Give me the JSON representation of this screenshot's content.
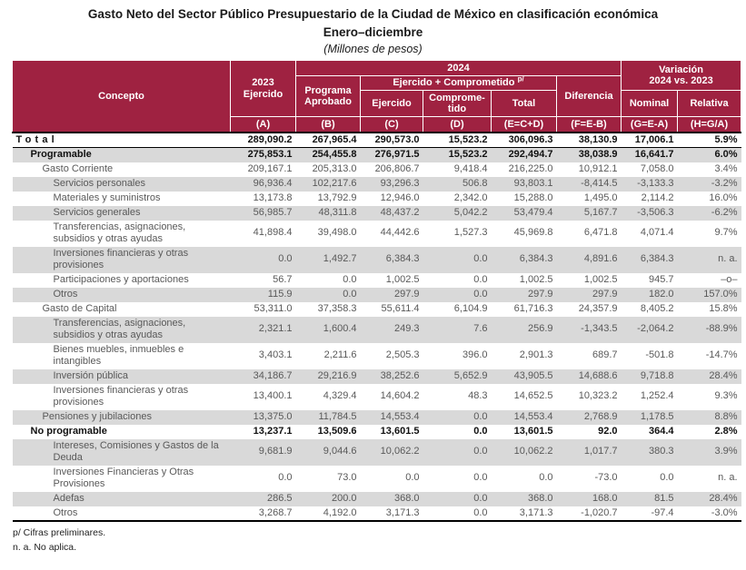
{
  "title": {
    "line1": "Gasto Neto del Sector Público Presupuestario de la Ciudad de México en clasificación económica",
    "line2": "Enero–diciembre",
    "line3": "(Millones de pesos)"
  },
  "colors": {
    "header_bg": "#9F2241",
    "alt_row_bg": "#D9D9D9",
    "body_text": "#595959",
    "bold_text": "#111111"
  },
  "table": {
    "header": {
      "concepto": "Concepto",
      "col2023_line1": "2023",
      "col2023_line2": "Ejercido",
      "group_2024": "2024",
      "variacion_line1": "Variación",
      "variacion_line2": "2024 vs. 2023",
      "programa_aprobado": "Programa Aprobado",
      "ejercido_comprometido": "Ejercido + Comprometido",
      "ejercido_comprometido_sup": "p/",
      "diferencia": "Diferencia",
      "ejercido": "Ejercido",
      "comprometido": "Comprome-tido",
      "total": "Total",
      "nominal": "Nominal",
      "relativa": "Relativa",
      "letter_a": "(A)",
      "letter_b": "(B)",
      "letter_c": "(C)",
      "letter_d": "(D)",
      "letter_e": "(E=C+D)",
      "letter_f": "(F=E-B)",
      "letter_g": "(G=E-A)",
      "letter_h": "(H=G/A)"
    },
    "rows": [
      {
        "concepto": "Total",
        "level": 0,
        "bold": true,
        "values": [
          "289,090.2",
          "267,965.4",
          "290,573.0",
          "15,523.2",
          "306,096.3",
          "38,130.9",
          "17,006.1",
          "5.9%"
        ]
      },
      {
        "concepto": "Programable",
        "level": 1,
        "bold": true,
        "values": [
          "275,853.1",
          "254,455.8",
          "276,971.5",
          "15,523.2",
          "292,494.7",
          "38,038.9",
          "16,641.7",
          "6.0%"
        ]
      },
      {
        "concepto": "Gasto Corriente",
        "level": 2,
        "bold": false,
        "values": [
          "209,167.1",
          "205,313.0",
          "206,806.7",
          "9,418.4",
          "216,225.0",
          "10,912.1",
          "7,058.0",
          "3.4%"
        ]
      },
      {
        "concepto": "Servicios personales",
        "level": 3,
        "bold": false,
        "values": [
          "96,936.4",
          "102,217.6",
          "93,296.3",
          "506.8",
          "93,803.1",
          "-8,414.5",
          "-3,133.3",
          "-3.2%"
        ]
      },
      {
        "concepto": "Materiales y suministros",
        "level": 3,
        "bold": false,
        "values": [
          "13,173.8",
          "13,792.9",
          "12,946.0",
          "2,342.0",
          "15,288.0",
          "1,495.0",
          "2,114.2",
          "16.0%"
        ]
      },
      {
        "concepto": "Servicios generales",
        "level": 3,
        "bold": false,
        "values": [
          "56,985.7",
          "48,311.8",
          "48,437.2",
          "5,042.2",
          "53,479.4",
          "5,167.7",
          "-3,506.3",
          "-6.2%"
        ]
      },
      {
        "concepto": "Transferencias, asignaciones, subsidios y otras ayudas",
        "level": 3,
        "bold": false,
        "values": [
          "41,898.4",
          "39,498.0",
          "44,442.6",
          "1,527.3",
          "45,969.8",
          "6,471.8",
          "4,071.4",
          "9.7%"
        ]
      },
      {
        "concepto": "Inversiones financieras y otras provisiones",
        "level": 3,
        "bold": false,
        "values": [
          "0.0",
          "1,492.7",
          "6,384.3",
          "0.0",
          "6,384.3",
          "4,891.6",
          "6,384.3",
          "n. a."
        ]
      },
      {
        "concepto": "Participaciones y aportaciones",
        "level": 3,
        "bold": false,
        "values": [
          "56.7",
          "0.0",
          "1,002.5",
          "0.0",
          "1,002.5",
          "1,002.5",
          "945.7",
          "–o–"
        ]
      },
      {
        "concepto": "Otros",
        "level": 3,
        "bold": false,
        "values": [
          "115.9",
          "0.0",
          "297.9",
          "0.0",
          "297.9",
          "297.9",
          "182.0",
          "157.0%"
        ]
      },
      {
        "concepto": "Gasto de Capital",
        "level": 2,
        "bold": false,
        "values": [
          "53,311.0",
          "37,358.3",
          "55,611.4",
          "6,104.9",
          "61,716.3",
          "24,357.9",
          "8,405.2",
          "15.8%"
        ]
      },
      {
        "concepto": "Transferencias, asignaciones, subsidios y otras ayudas",
        "level": 3,
        "bold": false,
        "values": [
          "2,321.1",
          "1,600.4",
          "249.3",
          "7.6",
          "256.9",
          "-1,343.5",
          "-2,064.2",
          "-88.9%"
        ]
      },
      {
        "concepto": "Bienes muebles, inmuebles e intangibles",
        "level": 3,
        "bold": false,
        "values": [
          "3,403.1",
          "2,211.6",
          "2,505.3",
          "396.0",
          "2,901.3",
          "689.7",
          "-501.8",
          "-14.7%"
        ]
      },
      {
        "concepto": "Inversión pública",
        "level": 3,
        "bold": false,
        "values": [
          "34,186.7",
          "29,216.9",
          "38,252.6",
          "5,652.9",
          "43,905.5",
          "14,688.6",
          "9,718.8",
          "28.4%"
        ]
      },
      {
        "concepto": "Inversiones financieras y otras provisiones",
        "level": 3,
        "bold": false,
        "values": [
          "13,400.1",
          "4,329.4",
          "14,604.2",
          "48.3",
          "14,652.5",
          "10,323.2",
          "1,252.4",
          "9.3%"
        ]
      },
      {
        "concepto": "Pensiones y jubilaciones",
        "level": 2,
        "bold": false,
        "values": [
          "13,375.0",
          "11,784.5",
          "14,553.4",
          "0.0",
          "14,553.4",
          "2,768.9",
          "1,178.5",
          "8.8%"
        ]
      },
      {
        "concepto": "No programable",
        "level": 1,
        "bold": true,
        "values": [
          "13,237.1",
          "13,509.6",
          "13,601.5",
          "0.0",
          "13,601.5",
          "92.0",
          "364.4",
          "2.8%"
        ]
      },
      {
        "concepto": "Intereses, Comisiones y Gastos de la Deuda",
        "level": 3,
        "bold": false,
        "values": [
          "9,681.9",
          "9,044.6",
          "10,062.2",
          "0.0",
          "10,062.2",
          "1,017.7",
          "380.3",
          "3.9%"
        ]
      },
      {
        "concepto": "Inversiones Financieras y Otras Provisiones",
        "level": 3,
        "bold": false,
        "values": [
          "0.0",
          "73.0",
          "0.0",
          "0.0",
          "0.0",
          "-73.0",
          "0.0",
          "n. a."
        ]
      },
      {
        "concepto": "Adefas",
        "level": 3,
        "bold": false,
        "values": [
          "286.5",
          "200.0",
          "368.0",
          "0.0",
          "368.0",
          "168.0",
          "81.5",
          "28.4%"
        ]
      },
      {
        "concepto": "Otros",
        "level": 3,
        "bold": false,
        "values": [
          "3,268.7",
          "4,192.0",
          "3,171.3",
          "0.0",
          "3,171.3",
          "-1,020.7",
          "-97.4",
          "-3.0%"
        ]
      }
    ]
  },
  "footnotes": {
    "preliminary": "p/ Cifras preliminares.",
    "no_aplica": "n. a. No aplica."
  }
}
